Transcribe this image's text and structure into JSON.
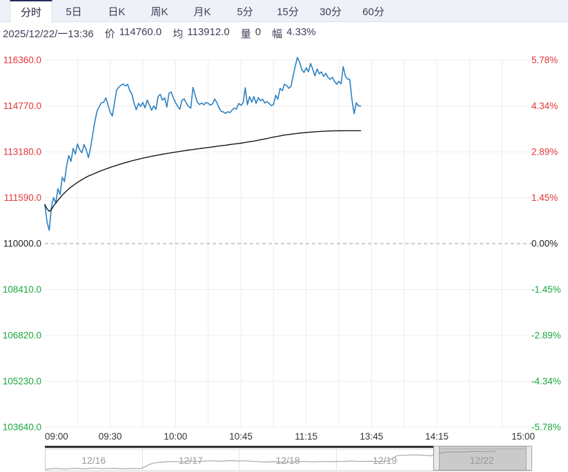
{
  "tabs": {
    "items": [
      "分时",
      "5日",
      "日K",
      "周K",
      "月K",
      "5分",
      "15分",
      "30分",
      "60分"
    ],
    "active_index": 0
  },
  "info_bar": {
    "datetime": "2025/12/22/一13:36",
    "fields": [
      {
        "label": "价",
        "value": "114760.0"
      },
      {
        "label": "均",
        "value": "113912.0"
      },
      {
        "label": "量",
        "value": "0"
      },
      {
        "label": "幅",
        "value": "4.33%"
      }
    ]
  },
  "colors": {
    "up_red": "#e23535",
    "down_green": "#1aa73e",
    "neutral": "#222222",
    "price_line": "#2b80c0",
    "avg_line": "#151515",
    "grid": "#ececec",
    "zero_dash": "#999999",
    "axis_text": "#333333",
    "tabbar_bg": "#eef1f8",
    "tab_active_border": "#262a5c",
    "info_text": "#3f3f58",
    "nav_label": "#999999",
    "nav_spark": "#a6a6a6"
  },
  "chart_data": {
    "type": "line",
    "title": "minute (分时) intraday chart",
    "prev_close": 110000.0,
    "session_minutes": 225,
    "minor_grid_minutes": 15,
    "y_levels": [
      116360.0,
      114770.0,
      113180.0,
      111590.0,
      110000.0,
      108410.0,
      106820.0,
      105230.0,
      103640.0
    ],
    "y_left_labels": [
      "116360.0",
      "114770.0",
      "113180.0",
      "111590.0",
      "110000.0",
      "108410.0",
      "106820.0",
      "105230.0",
      "103640.0"
    ],
    "y_right_labels": [
      "5.78%",
      "4.34%",
      "2.89%",
      "1.45%",
      "0.00%",
      "-1.45%",
      "-2.89%",
      "-4.34%",
      "-5.78%"
    ],
    "x_ticks": [
      {
        "minute": 0,
        "label": "09:00"
      },
      {
        "minute": 30,
        "label": "09:30"
      },
      {
        "minute": 60,
        "label": "10:00"
      },
      {
        "minute": 90,
        "label": "10:45"
      },
      {
        "minute": 120,
        "label": "11:15"
      },
      {
        "minute": 150,
        "label": "13:45"
      },
      {
        "minute": 180,
        "label": "14:15"
      },
      {
        "minute": 225,
        "label": "15:00"
      }
    ],
    "current": {
      "time": "13:36",
      "price": 114760.0,
      "avg": 113912.0,
      "volume": 0,
      "change_pct": "4.33%"
    },
    "series": [
      {
        "name": "price",
        "color_key": "price_line",
        "width": 1.6,
        "values": [
          111350,
          110750,
          110460,
          111250,
          111600,
          111400,
          111900,
          111700,
          112300,
          112150,
          112700,
          113050,
          112850,
          113300,
          113100,
          113450,
          113250,
          113150,
          113430,
          113250,
          112980,
          113320,
          113800,
          114250,
          114600,
          114750,
          114880,
          114900,
          115050,
          114800,
          114550,
          114420,
          114900,
          115330,
          115420,
          115490,
          115530,
          115460,
          115520,
          115300,
          115170,
          114850,
          114640,
          114860,
          114750,
          114890,
          114700,
          114970,
          114800,
          114620,
          114770,
          114650,
          115100,
          115170,
          114970,
          115050,
          114730,
          115210,
          115250,
          115050,
          114890,
          114750,
          114655,
          114970,
          115010,
          114855,
          114750,
          114690,
          115410,
          115150,
          114900,
          114820,
          114870,
          114810,
          114890,
          114860,
          114800,
          114840,
          115010,
          114880,
          114700,
          114580,
          114560,
          114510,
          114570,
          114540,
          114630,
          114700,
          114660,
          114855,
          114790,
          114870,
          115400,
          114810,
          115090,
          114900,
          115094,
          114855,
          115060,
          114950,
          115000,
          114870,
          114920,
          114855,
          114780,
          114820,
          115140,
          115000,
          115380,
          115300,
          115520,
          115480,
          115380,
          115450,
          115800,
          116160,
          116450,
          116280,
          116020,
          115930,
          116090,
          115950,
          116240,
          116050,
          115810,
          116050,
          115880,
          115950,
          115790,
          115900,
          115760,
          115690,
          115760,
          115620,
          115520,
          115620,
          115540,
          116130,
          115800,
          115700,
          115690,
          115000,
          114500,
          114880,
          114770,
          114760
        ]
      },
      {
        "name": "average",
        "color_key": "avg_line",
        "width": 1.4,
        "values": [
          111350,
          111200,
          111120,
          111180,
          111300,
          111400,
          111500,
          111590,
          111680,
          111755,
          111830,
          111895,
          111960,
          112013,
          112067,
          112120,
          112167,
          112213,
          112260,
          112300,
          112340,
          112372,
          112404,
          112436,
          112468,
          112500,
          112528,
          112556,
          112584,
          112612,
          112640,
          112664,
          112688,
          112712,
          112736,
          112760,
          112782,
          112804,
          112826,
          112848,
          112870,
          112888,
          112906,
          112924,
          112942,
          112960,
          112976,
          112992,
          113008,
          113024,
          113040,
          113054,
          113068,
          113082,
          113096,
          113110,
          113122,
          113134,
          113146,
          113158,
          113170,
          113182,
          113194,
          113206,
          113218,
          113230,
          113240,
          113250,
          113260,
          113270,
          113280,
          113290,
          113300,
          113310,
          113320,
          113330,
          113340,
          113350,
          113360,
          113370,
          113380,
          113390,
          113400,
          113410,
          113420,
          113430,
          113440,
          113450,
          113460,
          113470,
          113480,
          113492,
          113504,
          113516,
          113528,
          113540,
          113554,
          113568,
          113582,
          113596,
          113610,
          113626,
          113642,
          113658,
          113674,
          113690,
          113704,
          113718,
          113732,
          113746,
          113760,
          113770,
          113780,
          113790,
          113800,
          113810,
          113818,
          113826,
          113834,
          113842,
          113850,
          113856,
          113862,
          113868,
          113874,
          113880,
          113884,
          113888,
          113892,
          113896,
          113900,
          113902,
          113904,
          113906,
          113908,
          113910,
          113910,
          113911,
          113911,
          113912,
          113912,
          113912,
          113912,
          113912,
          113912,
          113912
        ]
      }
    ]
  },
  "navigator": {
    "days": [
      "12/16",
      "12/17",
      "12/18",
      "12/19",
      "12/22"
    ],
    "selected_index": 4,
    "sparkline": [
      [
        0.0,
        0.06
      ],
      [
        0.02,
        0.1
      ],
      [
        0.04,
        0.07
      ],
      [
        0.06,
        0.11
      ],
      [
        0.08,
        0.08
      ],
      [
        0.1,
        0.12
      ],
      [
        0.12,
        0.09
      ],
      [
        0.14,
        0.11
      ],
      [
        0.16,
        0.08
      ],
      [
        0.18,
        0.1
      ],
      [
        0.196,
        0.09
      ],
      [
        0.205,
        0.18
      ],
      [
        0.215,
        0.3
      ],
      [
        0.225,
        0.36
      ],
      [
        0.24,
        0.4
      ],
      [
        0.26,
        0.43
      ],
      [
        0.28,
        0.41
      ],
      [
        0.3,
        0.45
      ],
      [
        0.32,
        0.43
      ],
      [
        0.34,
        0.46
      ],
      [
        0.36,
        0.44
      ],
      [
        0.38,
        0.47
      ],
      [
        0.396,
        0.45
      ],
      [
        0.41,
        0.46
      ],
      [
        0.43,
        0.43
      ],
      [
        0.45,
        0.4
      ],
      [
        0.47,
        0.42
      ],
      [
        0.49,
        0.39
      ],
      [
        0.51,
        0.41
      ],
      [
        0.53,
        0.43
      ],
      [
        0.55,
        0.41
      ],
      [
        0.57,
        0.43
      ],
      [
        0.59,
        0.42
      ],
      [
        0.61,
        0.43
      ],
      [
        0.63,
        0.45
      ],
      [
        0.65,
        0.43
      ],
      [
        0.67,
        0.44
      ],
      [
        0.69,
        0.43
      ],
      [
        0.705,
        0.45
      ],
      [
        0.715,
        0.58
      ],
      [
        0.725,
        0.7
      ],
      [
        0.74,
        0.72
      ],
      [
        0.76,
        0.74
      ],
      [
        0.78,
        0.72
      ],
      [
        0.792,
        0.69
      ],
      [
        0.8,
        0.73
      ],
      [
        0.81,
        0.8
      ],
      [
        0.825,
        0.86
      ],
      [
        0.84,
        0.88
      ],
      [
        0.86,
        0.87
      ],
      [
        0.88,
        0.9
      ],
      [
        0.9,
        0.88
      ],
      [
        0.92,
        0.91
      ],
      [
        0.928,
        0.9
      ]
    ]
  }
}
